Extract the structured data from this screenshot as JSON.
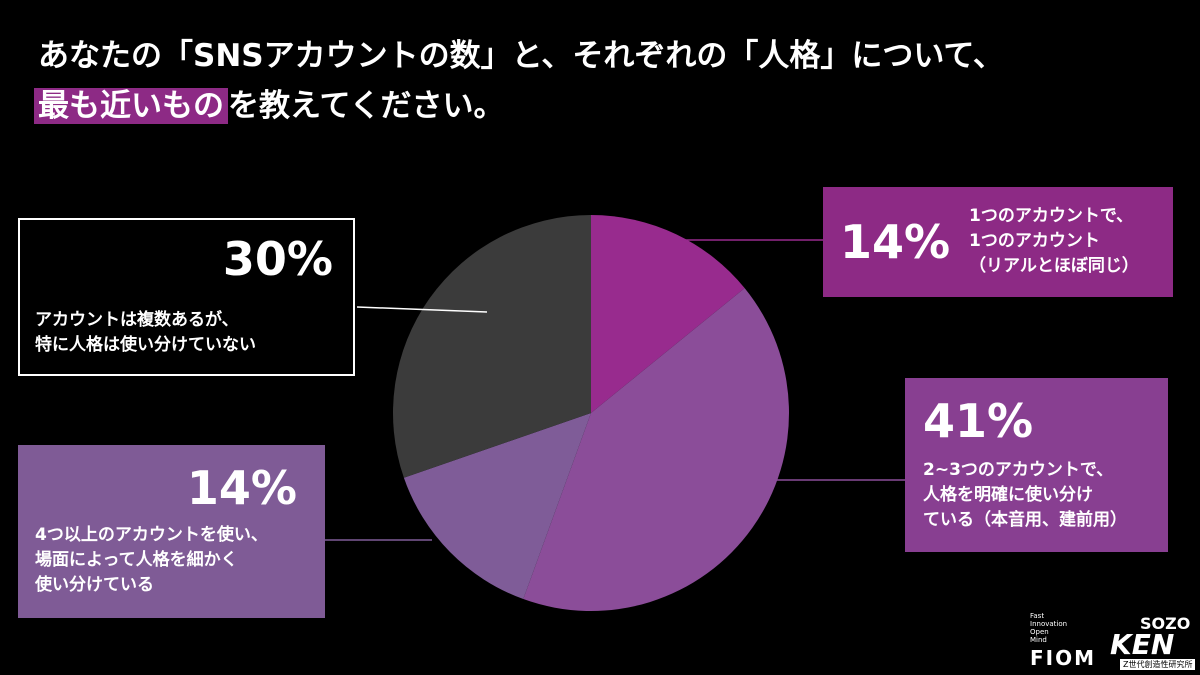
{
  "chart_data": {
    "type": "pie",
    "title": "あなたの「SNSアカウントの数」と、それぞれの「人格」について、",
    "subtitle_highlight": "最も近いもの",
    "subtitle": "を教えてください。",
    "categories": [
      "1つのアカウントで、\n1つのアカウント\n（リアルとほぼ同じ）",
      "2~3つのアカウントで、\n人格を明確に使い分け\nている（本音用、建前用）",
      "4つ以上のアカウントを使い、\n場面によって人格を細かく\n使い分けている",
      "アカウントは複数あるが、\n特に人格は使い分けていない"
    ],
    "values": [
      14,
      41,
      14,
      30
    ],
    "value_labels": [
      "14%",
      "41%",
      "14%",
      "30%"
    ],
    "colors": [
      "#982b8e",
      "#8b4d99",
      "#7f5c98",
      "#3b3b3b"
    ]
  },
  "logos": {
    "fiom_tagline": "Fast\nInnovation\nOpen\nMind",
    "fiom": "FIOM",
    "sozo": "SOZO",
    "ken": "KEN",
    "institute": "Z世代創造性研究所"
  }
}
